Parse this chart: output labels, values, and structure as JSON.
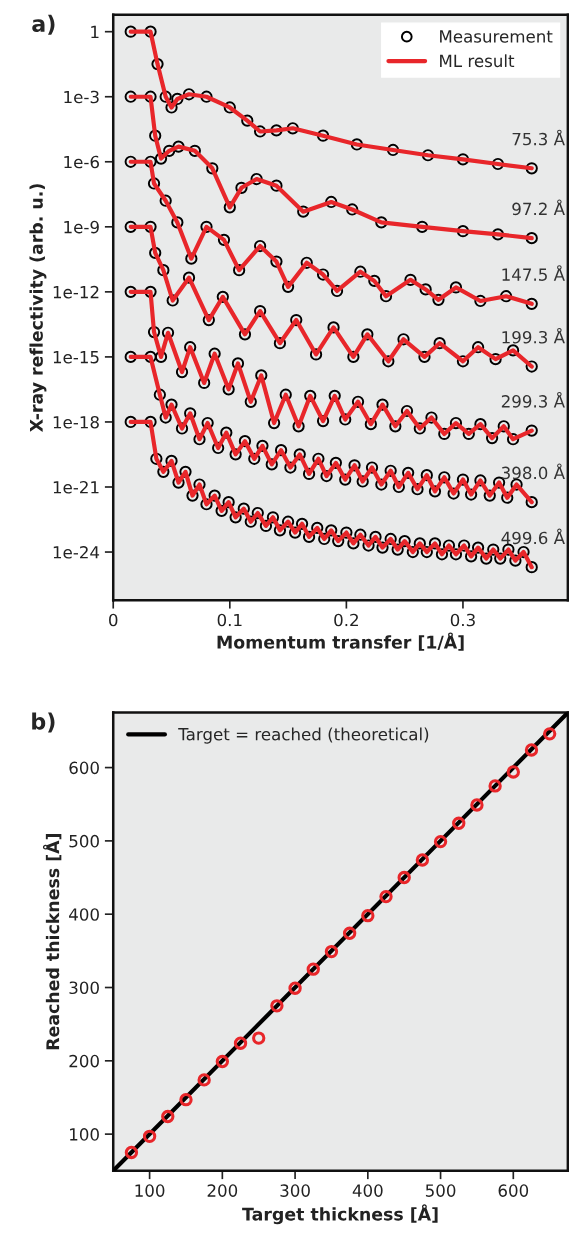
{
  "chart_data": [
    {
      "type": "line",
      "title": "a)",
      "xlabel": "Momentum transfer [1/Å]",
      "ylabel": "X-ray reflectivity (arb. u.)",
      "log": true,
      "legend": "top right",
      "grid": false,
      "xlim": [
        0,
        0.39
      ],
      "xticks": [
        0,
        0.1,
        0.2,
        0.3
      ],
      "ylim": [
        6e-27,
        6
      ],
      "yticks": [
        1,
        {
          "value": 0.001,
          "label": "1e-3"
        },
        {
          "value": 1e-06,
          "label": "1e-6"
        },
        {
          "value": 1e-09,
          "label": "1e-9"
        },
        {
          "value": 1e-12,
          "label": "1e-12"
        },
        {
          "value": 1e-15,
          "label": "1e-15"
        },
        {
          "value": 1e-18,
          "label": "1e-18"
        },
        {
          "value": 1e-21,
          "label": "1e-21"
        },
        {
          "value": 1e-24,
          "label": "1e-24"
        }
      ],
      "annotations": [
        "75.3 Å",
        "97.2 Å",
        "147.5 Å",
        "199.3 Å",
        "299.3 Å",
        "398.0 Å",
        "499.6 Å"
      ],
      "series": [
        {
          "type": "scatter",
          "marker": "circle",
          "name": "Measurement",
          "color": "#000000",
          "x": [
            0.015,
            0.032,
            0.038,
            0.045,
            0.05,
            0.055,
            0.065,
            0.08,
            0.1,
            0.115,
            0.126,
            0.14,
            0.154,
            0.18,
            0.209,
            0.24,
            0.27,
            0.3,
            0.33,
            0.359
          ],
          "values": [
            1,
            1,
            0.032,
            0.001,
            0.00032,
            0.00079,
            0.0013,
            0.001,
            0.00032,
            7.9e-05,
            2.5e-05,
            2.8e-05,
            3.5e-05,
            1.6e-05,
            6.3e-06,
            3.5e-06,
            2e-06,
            1.3e-06,
            7.9e-07,
            5e-07
          ]
        },
        {
          "name": "ML result",
          "color": "#e8262a",
          "x": [
            0.015,
            0.032,
            0.038,
            0.045,
            0.05,
            0.055,
            0.065,
            0.08,
            0.1,
            0.115,
            0.126,
            0.14,
            0.154,
            0.18,
            0.209,
            0.24,
            0.27,
            0.3,
            0.33,
            0.359
          ],
          "values": [
            1,
            1,
            0.032,
            0.001,
            0.00032,
            0.00079,
            0.0013,
            0.001,
            0.00032,
            7.9e-05,
            2.5e-05,
            2.8e-05,
            3.5e-05,
            1.6e-05,
            6.3e-06,
            3.5e-06,
            2e-06,
            1.3e-06,
            7.9e-07,
            5e-07
          ]
        },
        {
          "type": "scatter",
          "marker": "circle",
          "color": "#000000",
          "x": [
            0.015,
            0.032,
            0.036,
            0.041,
            0.048,
            0.056,
            0.07,
            0.085,
            0.1,
            0.11,
            0.123,
            0.14,
            0.163,
            0.187,
            0.205,
            0.23,
            0.265,
            0.3,
            0.33,
            0.359
          ],
          "values": [
            0.001,
            0.001,
            1.6e-05,
            1.4e-06,
            3.2e-06,
            5e-06,
            3.2e-06,
            5e-07,
            7.9e-09,
            6.3e-08,
            1.6e-07,
            7.9e-08,
            5e-09,
            1.4e-08,
            6.3e-09,
            1.6e-09,
            1e-09,
            6.3e-10,
            4.5e-10,
            3e-10
          ]
        },
        {
          "type": "line",
          "color": "#e8262a",
          "x": [
            0.015,
            0.032,
            0.036,
            0.041,
            0.048,
            0.056,
            0.07,
            0.085,
            0.1,
            0.11,
            0.123,
            0.14,
            0.163,
            0.187,
            0.205,
            0.23,
            0.265,
            0.3,
            0.33,
            0.359
          ],
          "values": [
            0.001,
            0.001,
            1.6e-05,
            1.4e-06,
            3.2e-06,
            5e-06,
            3.2e-06,
            5e-07,
            7.9e-09,
            6.3e-08,
            1.6e-07,
            7.9e-08,
            5e-09,
            1.4e-08,
            6.3e-09,
            1.6e-09,
            1e-09,
            6.3e-10,
            4.5e-10,
            3e-10
          ]
        },
        {
          "type": "scatter",
          "marker": "circle",
          "color": "#000000",
          "x": [
            0.015,
            0.032,
            0.035,
            0.045,
            0.055,
            0.067,
            0.08,
            0.095,
            0.108,
            0.126,
            0.14,
            0.15,
            0.166,
            0.18,
            0.192,
            0.212,
            0.224,
            0.234,
            0.255,
            0.268,
            0.279,
            0.294,
            0.315,
            0.337,
            0.359
          ],
          "values": [
            1e-06,
            1e-06,
            1e-07,
            1.6e-08,
            1.6e-09,
            3.4e-11,
            1e-09,
            2.5e-10,
            1e-11,
            1.3e-10,
            2.5e-11,
            1.7e-12,
            2.2e-11,
            6.3e-12,
            1.1e-12,
            8.5e-12,
            3.2e-12,
            6.3e-13,
            3.6e-12,
            1.3e-12,
            4.3e-13,
            1.6e-12,
            3.8e-13,
            6.3e-13,
            2.8e-13
          ]
        },
        {
          "type": "line",
          "color": "#e8262a",
          "x": [
            0.015,
            0.032,
            0.035,
            0.045,
            0.055,
            0.067,
            0.08,
            0.095,
            0.108,
            0.126,
            0.14,
            0.15,
            0.166,
            0.18,
            0.192,
            0.212,
            0.224,
            0.234,
            0.255,
            0.268,
            0.279,
            0.294,
            0.315,
            0.337,
            0.359
          ],
          "values": [
            1e-06,
            1e-06,
            1e-07,
            1.6e-08,
            1.6e-09,
            3.4e-11,
            1e-09,
            2.5e-10,
            1e-11,
            1.3e-10,
            2.5e-11,
            1.7e-12,
            2.2e-11,
            6.3e-12,
            1.1e-12,
            8.5e-12,
            3.2e-12,
            6.3e-13,
            3.6e-12,
            1.3e-12,
            4.3e-13,
            1.6e-12,
            3.8e-13,
            6.3e-13,
            2.8e-13
          ]
        },
        {
          "type": "scatter",
          "marker": "circle",
          "color": "#000000",
          "x": [
            0.015,
            0.032,
            0.036,
            0.043,
            0.051,
            0.065,
            0.082,
            0.094,
            0.113,
            0.126,
            0.143,
            0.157,
            0.174,
            0.189,
            0.206,
            0.218,
            0.236,
            0.249,
            0.267,
            0.28,
            0.3,
            0.313,
            0.328,
            0.343,
            0.359
          ],
          "values": [
            1e-09,
            1e-09,
            6.3e-11,
            1e-11,
            4e-13,
            4.5e-12,
            5e-14,
            5.9e-13,
            1.1e-14,
            1.3e-13,
            4.3e-15,
            5e-14,
            1.3e-15,
            2.3e-14,
            1e-15,
            1.1e-14,
            6.3e-16,
            6.5e-15,
            1e-15,
            4.3e-15,
            6.3e-16,
            2.8e-15,
            7.9e-16,
            2e-15,
            3.6e-16
          ]
        },
        {
          "type": "line",
          "color": "#e8262a",
          "x": [
            0.015,
            0.032,
            0.036,
            0.043,
            0.051,
            0.065,
            0.082,
            0.094,
            0.113,
            0.126,
            0.143,
            0.157,
            0.174,
            0.189,
            0.206,
            0.218,
            0.236,
            0.249,
            0.267,
            0.28,
            0.3,
            0.313,
            0.328,
            0.343,
            0.359
          ],
          "values": [
            1e-09,
            1e-09,
            6.3e-11,
            1e-11,
            4e-13,
            4.5e-12,
            5e-14,
            5.9e-13,
            1.1e-14,
            1.3e-13,
            4.3e-15,
            5e-14,
            1.3e-15,
            2.3e-14,
            1e-15,
            1.1e-14,
            6.3e-16,
            6.5e-15,
            1e-15,
            4.3e-15,
            6.3e-16,
            2.8e-15,
            7.9e-16,
            2e-15,
            3.6e-16
          ]
        },
        {
          "type": "scatter",
          "marker": "circle",
          "color": "#000000",
          "x": [
            0.015,
            0.032,
            0.035,
            0.041,
            0.047,
            0.059,
            0.066,
            0.078,
            0.087,
            0.099,
            0.107,
            0.118,
            0.127,
            0.138,
            0.148,
            0.159,
            0.169,
            0.18,
            0.19,
            0.199,
            0.21,
            0.221,
            0.231,
            0.242,
            0.252,
            0.263,
            0.273,
            0.284,
            0.294,
            0.305,
            0.315,
            0.325,
            0.335,
            0.343,
            0.359
          ],
          "values": [
            1e-12,
            1e-12,
            1.4e-14,
            1e-15,
            1.3e-14,
            2e-16,
            2.8e-15,
            6.3e-17,
            1.4e-15,
            3.2e-17,
            5e-16,
            8.5e-18,
            1.4e-16,
            8.9e-19,
            1.8e-17,
            6.3e-19,
            1.6e-17,
            1.1e-18,
            1.6e-17,
            1.3e-18,
            8.5e-18,
            7.9e-19,
            6.3e-18,
            6.3e-19,
            3.2e-18,
            5e-19,
            1.6e-18,
            2.8e-19,
            8.9e-19,
            2.8e-19,
            7.9e-19,
            1.8e-19,
            6.3e-19,
            1.6e-19,
            4e-19
          ]
        },
        {
          "type": "line",
          "color": "#e8262a",
          "x": [
            0.015,
            0.032,
            0.035,
            0.041,
            0.047,
            0.059,
            0.066,
            0.078,
            0.087,
            0.099,
            0.107,
            0.118,
            0.127,
            0.138,
            0.148,
            0.159,
            0.169,
            0.18,
            0.19,
            0.199,
            0.21,
            0.221,
            0.231,
            0.242,
            0.252,
            0.263,
            0.273,
            0.284,
            0.294,
            0.305,
            0.315,
            0.325,
            0.335,
            0.343,
            0.359
          ],
          "values": [
            1e-12,
            1e-12,
            1.4e-14,
            1e-15,
            1.3e-14,
            2e-16,
            2.8e-15,
            6.3e-17,
            1.4e-15,
            3.2e-17,
            5e-16,
            8.5e-18,
            1.4e-16,
            8.9e-19,
            1.8e-17,
            6.3e-19,
            1.6e-17,
            1.1e-18,
            1.6e-17,
            1.3e-18,
            8.5e-18,
            7.9e-19,
            6.3e-18,
            6.3e-19,
            3.2e-18,
            5e-19,
            1.6e-18,
            2.8e-19,
            8.9e-19,
            2.8e-19,
            7.9e-19,
            1.8e-19,
            6.3e-19,
            1.6e-19,
            4e-19
          ]
        },
        {
          "type": "scatter",
          "marker": "circle",
          "color": "#000000",
          "x": [
            0.015,
            0.032,
            0.04,
            0.045,
            0.05,
            0.059,
            0.066,
            0.074,
            0.081,
            0.09,
            0.097,
            0.105,
            0.113,
            0.121,
            0.128,
            0.136,
            0.144,
            0.152,
            0.16,
            0.168,
            0.176,
            0.183,
            0.191,
            0.199,
            0.207,
            0.214,
            0.222,
            0.23,
            0.238,
            0.245,
            0.253,
            0.261,
            0.269,
            0.276,
            0.284,
            0.292,
            0.3,
            0.307,
            0.315,
            0.323,
            0.331,
            0.338,
            0.346,
            0.359
          ],
          "values": [
            1e-15,
            1e-15,
            1.8e-17,
            1.6e-18,
            6.3e-18,
            5e-19,
            2.5e-18,
            1.6e-19,
            8.9e-19,
            6.3e-20,
            3.2e-19,
            3.2e-20,
            1.3e-19,
            2e-20,
            7.9e-20,
            1.1e-20,
            5e-20,
            7.9e-21,
            3.2e-20,
            4e-21,
            2e-20,
            3.2e-21,
            1.3e-20,
            2.2e-21,
            1e-20,
            1.8e-21,
            7.9e-21,
            1.3e-21,
            5.6e-21,
            1e-21,
            4.5e-21,
            7.9e-22,
            3.5e-21,
            6.3e-22,
            2.8e-21,
            5e-22,
            2.2e-21,
            4.5e-22,
            2e-21,
            4e-22,
            1.6e-21,
            3.2e-22,
            1.3e-21,
            2e-22
          ]
        },
        {
          "type": "line",
          "color": "#e8262a",
          "x": [
            0.015,
            0.032,
            0.04,
            0.045,
            0.05,
            0.059,
            0.066,
            0.074,
            0.081,
            0.09,
            0.097,
            0.105,
            0.113,
            0.121,
            0.128,
            0.136,
            0.144,
            0.152,
            0.16,
            0.168,
            0.176,
            0.183,
            0.191,
            0.199,
            0.207,
            0.214,
            0.222,
            0.23,
            0.238,
            0.245,
            0.253,
            0.261,
            0.269,
            0.276,
            0.284,
            0.292,
            0.3,
            0.307,
            0.315,
            0.323,
            0.331,
            0.338,
            0.346,
            0.359
          ],
          "values": [
            1e-15,
            1e-15,
            1.8e-17,
            1.6e-18,
            6.3e-18,
            5e-19,
            2.5e-18,
            1.6e-19,
            8.9e-19,
            6.3e-20,
            3.2e-19,
            3.2e-20,
            1.3e-19,
            2e-20,
            7.9e-20,
            1.1e-20,
            5e-20,
            7.9e-21,
            3.2e-20,
            4e-21,
            2e-20,
            3.2e-21,
            1.3e-20,
            2.2e-21,
            1e-20,
            1.8e-21,
            7.9e-21,
            1.3e-21,
            5.6e-21,
            1e-21,
            4.5e-21,
            7.9e-22,
            3.5e-21,
            6.3e-22,
            2.8e-21,
            5e-22,
            2.2e-21,
            4.5e-22,
            2e-21,
            4e-22,
            1.6e-21,
            3.2e-22,
            1.3e-21,
            2e-22
          ]
        },
        {
          "type": "scatter",
          "marker": "circle",
          "color": "#000000",
          "x": [
            0.015,
            0.032,
            0.037,
            0.043,
            0.05,
            0.056,
            0.062,
            0.068,
            0.074,
            0.08,
            0.087,
            0.093,
            0.099,
            0.105,
            0.112,
            0.118,
            0.124,
            0.131,
            0.137,
            0.143,
            0.15,
            0.156,
            0.162,
            0.168,
            0.175,
            0.181,
            0.187,
            0.193,
            0.2,
            0.206,
            0.212,
            0.219,
            0.225,
            0.231,
            0.238,
            0.244,
            0.25,
            0.257,
            0.263,
            0.269,
            0.276,
            0.282,
            0.288,
            0.294,
            0.301,
            0.307,
            0.313,
            0.32,
            0.326,
            0.332,
            0.339,
            0.345,
            0.352,
            0.359
          ],
          "values": [
            1e-18,
            1e-18,
            2e-20,
            5e-21,
            1.6e-20,
            1.6e-21,
            5e-21,
            4e-22,
            1.3e-21,
            1.6e-22,
            4e-22,
            7.9e-23,
            2e-22,
            4e-23,
            1e-22,
            2.5e-23,
            6.3e-23,
            1.6e-23,
            4e-23,
            1e-23,
            2.5e-23,
            7.9e-24,
            2e-23,
            5e-24,
            1.3e-23,
            4e-24,
            1e-23,
            3.2e-24,
            7.9e-24,
            2.5e-24,
            6.3e-24,
            2e-24,
            5e-24,
            1.6e-24,
            4e-24,
            1.3e-24,
            3.2e-24,
            1e-24,
            2.5e-24,
            1e-24,
            2.5e-24,
            7.9e-25,
            2e-24,
            7.9e-25,
            2e-24,
            6.3e-25,
            1.6e-24,
            5e-25,
            1.3e-24,
            5e-25,
            1.3e-24,
            4e-25,
            1e-24,
            2e-25
          ]
        },
        {
          "type": "line",
          "color": "#e8262a",
          "x": [
            0.015,
            0.032,
            0.037,
            0.043,
            0.05,
            0.056,
            0.062,
            0.068,
            0.074,
            0.08,
            0.087,
            0.093,
            0.099,
            0.105,
            0.112,
            0.118,
            0.124,
            0.131,
            0.137,
            0.143,
            0.15,
            0.156,
            0.162,
            0.168,
            0.175,
            0.181,
            0.187,
            0.193,
            0.2,
            0.206,
            0.212,
            0.219,
            0.225,
            0.231,
            0.238,
            0.244,
            0.25,
            0.257,
            0.263,
            0.269,
            0.276,
            0.282,
            0.288,
            0.294,
            0.301,
            0.307,
            0.313,
            0.32,
            0.326,
            0.332,
            0.339,
            0.345,
            0.352,
            0.359
          ],
          "values": [
            1e-18,
            1e-18,
            2e-20,
            5e-21,
            1.6e-20,
            1.6e-21,
            5e-21,
            4e-22,
            1.3e-21,
            1.6e-22,
            4e-22,
            7.9e-23,
            2e-22,
            4e-23,
            1e-22,
            2.5e-23,
            6.3e-23,
            1.6e-23,
            4e-23,
            1e-23,
            2.5e-23,
            7.9e-24,
            2e-23,
            5e-24,
            1.3e-23,
            4e-24,
            1e-23,
            3.2e-24,
            7.9e-24,
            2.5e-24,
            6.3e-24,
            2e-24,
            5e-24,
            1.6e-24,
            4e-24,
            1.3e-24,
            3.2e-24,
            1e-24,
            2.5e-24,
            1e-24,
            2.5e-24,
            7.9e-25,
            2e-24,
            7.9e-25,
            2e-24,
            6.3e-25,
            1.6e-24,
            5e-25,
            1.3e-24,
            5e-25,
            1.3e-24,
            4e-25,
            1e-24,
            2e-25
          ]
        }
      ]
    },
    {
      "type": "scatter",
      "title": "b)",
      "xlabel": "Target thickness [Å]",
      "ylabel": "Reached thickness [Å]",
      "legend": "top left",
      "grid": false,
      "xlim": [
        50,
        675
      ],
      "xticks": [
        100,
        200,
        300,
        400,
        500,
        600
      ],
      "ylim": [
        50,
        675
      ],
      "yticks": [
        100,
        200,
        300,
        400,
        500,
        600
      ],
      "series": [
        {
          "type": "line",
          "name": "Target = reached (theoretical)",
          "color": "#000000",
          "x": [
            50,
            675
          ],
          "values": [
            50,
            675
          ]
        },
        {
          "marker": "circle",
          "color": "#e8262a",
          "x": [
            75,
            100,
            125,
            150,
            175,
            200,
            225,
            250,
            275,
            300,
            325,
            350,
            375,
            400,
            425,
            450,
            475,
            500,
            525,
            550,
            575,
            600,
            625,
            650
          ],
          "values": [
            75,
            97,
            124,
            147,
            174,
            199,
            224,
            231,
            275,
            299,
            325,
            349,
            374,
            398,
            424,
            450,
            474,
            499,
            524,
            549,
            575,
            594,
            624,
            646
          ]
        }
      ]
    }
  ]
}
